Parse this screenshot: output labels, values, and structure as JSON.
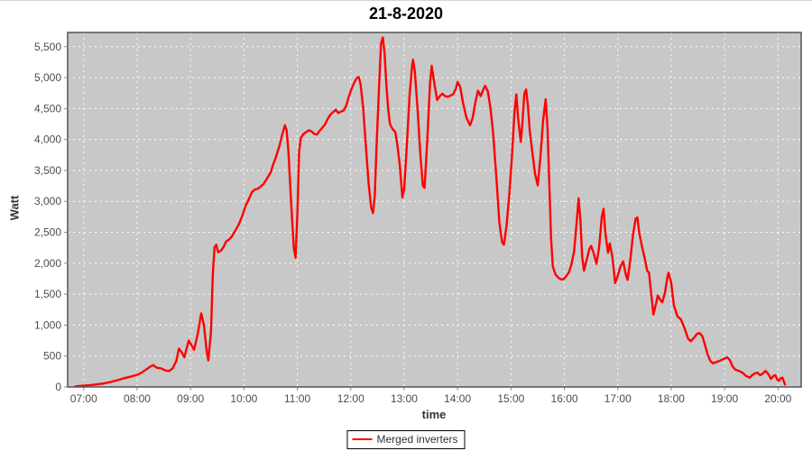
{
  "title": "21-8-2020",
  "colors": {
    "series": "#ff0000",
    "plot_background": "#c8c8c8",
    "gridline": "#ffffff",
    "plot_border": "#545454",
    "tick_color": "#8a8a8a",
    "tick_label": "#4d4d4d",
    "axis_title": "#333333",
    "title": "#000000",
    "legend_border": "#000000",
    "page_background": "#ffffff"
  },
  "chart_data": {
    "type": "line",
    "title": "21-8-2020",
    "xlabel": "time",
    "ylabel": "Watt",
    "grid": "white dashed gridlines on gray plot background",
    "x_ticks": [
      "07:00",
      "08:00",
      "09:00",
      "10:00",
      "11:00",
      "12:00",
      "13:00",
      "14:00",
      "15:00",
      "16:00",
      "17:00",
      "18:00",
      "19:00",
      "20:00"
    ],
    "y_ticks": [
      0,
      500,
      1000,
      1500,
      2000,
      2500,
      3000,
      3500,
      4000,
      4500,
      5000,
      5500
    ],
    "y_tick_labels": [
      "0",
      "500",
      "1,000",
      "1,500",
      "2,000",
      "2,500",
      "3,000",
      "3,500",
      "4,000",
      "4,500",
      "5,000",
      "5,500"
    ],
    "ylim": [
      0,
      5730
    ],
    "xlim_minutes": [
      402,
      1226
    ],
    "legend": {
      "position": "bottom-center",
      "entries": [
        {
          "label": "Merged inverters",
          "color": "#ff0000"
        }
      ]
    },
    "series": [
      {
        "name": "Merged inverters",
        "color": "#ff0000",
        "points": [
          [
            "06:51",
            10
          ],
          [
            "07:00",
            20
          ],
          [
            "07:08",
            30
          ],
          [
            "07:15",
            42
          ],
          [
            "07:22",
            55
          ],
          [
            "07:30",
            80
          ],
          [
            "07:38",
            110
          ],
          [
            "07:45",
            140
          ],
          [
            "07:52",
            165
          ],
          [
            "08:00",
            195
          ],
          [
            "08:05",
            230
          ],
          [
            "08:10",
            280
          ],
          [
            "08:15",
            330
          ],
          [
            "08:18",
            355
          ],
          [
            "08:22",
            310
          ],
          [
            "08:27",
            300
          ],
          [
            "08:32",
            265
          ],
          [
            "08:36",
            258
          ],
          [
            "08:40",
            300
          ],
          [
            "08:44",
            420
          ],
          [
            "08:47",
            620
          ],
          [
            "08:50",
            560
          ],
          [
            "08:53",
            480
          ],
          [
            "08:56",
            640
          ],
          [
            "08:58",
            750
          ],
          [
            "09:01",
            680
          ],
          [
            "09:04",
            600
          ],
          [
            "09:08",
            850
          ],
          [
            "09:12",
            1190
          ],
          [
            "09:15",
            1000
          ],
          [
            "09:18",
            600
          ],
          [
            "09:20",
            430
          ],
          [
            "09:23",
            900
          ],
          [
            "09:25",
            1800
          ],
          [
            "09:27",
            2260
          ],
          [
            "09:29",
            2300
          ],
          [
            "09:31",
            2180
          ],
          [
            "09:34",
            2200
          ],
          [
            "09:37",
            2260
          ],
          [
            "09:40",
            2350
          ],
          [
            "09:43",
            2380
          ],
          [
            "09:46",
            2420
          ],
          [
            "09:50",
            2520
          ],
          [
            "09:54",
            2620
          ],
          [
            "09:58",
            2760
          ],
          [
            "10:02",
            2930
          ],
          [
            "10:06",
            3050
          ],
          [
            "10:09",
            3150
          ],
          [
            "10:12",
            3190
          ],
          [
            "10:15",
            3200
          ],
          [
            "10:18",
            3230
          ],
          [
            "10:22",
            3280
          ],
          [
            "10:26",
            3370
          ],
          [
            "10:30",
            3470
          ],
          [
            "10:33",
            3600
          ],
          [
            "10:36",
            3720
          ],
          [
            "10:40",
            3900
          ],
          [
            "10:43",
            4080
          ],
          [
            "10:46",
            4230
          ],
          [
            "10:48",
            4150
          ],
          [
            "10:50",
            3800
          ],
          [
            "10:53",
            3000
          ],
          [
            "10:56",
            2250
          ],
          [
            "10:58",
            2090
          ],
          [
            "11:00",
            2800
          ],
          [
            "11:02",
            3800
          ],
          [
            "11:04",
            4030
          ],
          [
            "11:07",
            4090
          ],
          [
            "11:10",
            4120
          ],
          [
            "11:13",
            4150
          ],
          [
            "11:16",
            4130
          ],
          [
            "11:19",
            4090
          ],
          [
            "11:22",
            4080
          ],
          [
            "11:25",
            4140
          ],
          [
            "11:28",
            4190
          ],
          [
            "11:31",
            4240
          ],
          [
            "11:34",
            4330
          ],
          [
            "11:37",
            4400
          ],
          [
            "11:40",
            4440
          ],
          [
            "11:43",
            4480
          ],
          [
            "11:46",
            4430
          ],
          [
            "11:49",
            4450
          ],
          [
            "11:52",
            4470
          ],
          [
            "11:55",
            4550
          ],
          [
            "11:58",
            4700
          ],
          [
            "12:01",
            4820
          ],
          [
            "12:04",
            4920
          ],
          [
            "12:07",
            5000
          ],
          [
            "12:09",
            5010
          ],
          [
            "12:11",
            4900
          ],
          [
            "12:14",
            4500
          ],
          [
            "12:17",
            3900
          ],
          [
            "12:20",
            3300
          ],
          [
            "12:23",
            2900
          ],
          [
            "12:25",
            2810
          ],
          [
            "12:27",
            3100
          ],
          [
            "12:29",
            3900
          ],
          [
            "12:32",
            4900
          ],
          [
            "12:34",
            5550
          ],
          [
            "12:36",
            5650
          ],
          [
            "12:38",
            5400
          ],
          [
            "12:40",
            4900
          ],
          [
            "12:42",
            4500
          ],
          [
            "12:44",
            4250
          ],
          [
            "12:47",
            4170
          ],
          [
            "12:50",
            4120
          ],
          [
            "12:52",
            3950
          ],
          [
            "12:55",
            3600
          ],
          [
            "12:58",
            3060
          ],
          [
            "13:00",
            3200
          ],
          [
            "13:03",
            3900
          ],
          [
            "13:06",
            4700
          ],
          [
            "13:09",
            5200
          ],
          [
            "13:10",
            5290
          ],
          [
            "13:12",
            5100
          ],
          [
            "13:15",
            4500
          ],
          [
            "13:18",
            3800
          ],
          [
            "13:21",
            3250
          ],
          [
            "13:23",
            3220
          ],
          [
            "13:26",
            4000
          ],
          [
            "13:29",
            4900
          ],
          [
            "13:31",
            5190
          ],
          [
            "13:34",
            4900
          ],
          [
            "13:37",
            4640
          ],
          [
            "13:40",
            4700
          ],
          [
            "13:43",
            4740
          ],
          [
            "13:46",
            4700
          ],
          [
            "13:49",
            4690
          ],
          [
            "13:52",
            4710
          ],
          [
            "13:55",
            4730
          ],
          [
            "13:58",
            4820
          ],
          [
            "14:00",
            4930
          ],
          [
            "14:03",
            4850
          ],
          [
            "14:06",
            4600
          ],
          [
            "14:10",
            4350
          ],
          [
            "14:14",
            4230
          ],
          [
            "14:17",
            4350
          ],
          [
            "14:20",
            4600
          ],
          [
            "14:23",
            4790
          ],
          [
            "14:26",
            4700
          ],
          [
            "14:29",
            4810
          ],
          [
            "14:31",
            4870
          ],
          [
            "14:34",
            4780
          ],
          [
            "14:37",
            4500
          ],
          [
            "14:40",
            4100
          ],
          [
            "14:44",
            3300
          ],
          [
            "14:47",
            2650
          ],
          [
            "14:50",
            2340
          ],
          [
            "14:52",
            2300
          ],
          [
            "14:55",
            2600
          ],
          [
            "14:58",
            3100
          ],
          [
            "15:01",
            3700
          ],
          [
            "15:04",
            4450
          ],
          [
            "15:06",
            4730
          ],
          [
            "15:08",
            4350
          ],
          [
            "15:11",
            3960
          ],
          [
            "15:13",
            4300
          ],
          [
            "15:15",
            4740
          ],
          [
            "15:17",
            4810
          ],
          [
            "15:19",
            4550
          ],
          [
            "15:21",
            4150
          ],
          [
            "15:24",
            3800
          ],
          [
            "15:27",
            3450
          ],
          [
            "15:30",
            3260
          ],
          [
            "15:33",
            3700
          ],
          [
            "15:36",
            4300
          ],
          [
            "15:39",
            4650
          ],
          [
            "15:41",
            4200
          ],
          [
            "15:43",
            3300
          ],
          [
            "15:45",
            2400
          ],
          [
            "15:47",
            1950
          ],
          [
            "15:50",
            1820
          ],
          [
            "15:53",
            1770
          ],
          [
            "15:56",
            1740
          ],
          [
            "15:59",
            1740
          ],
          [
            "16:02",
            1790
          ],
          [
            "16:05",
            1850
          ],
          [
            "16:08",
            1980
          ],
          [
            "16:11",
            2200
          ],
          [
            "16:14",
            2700
          ],
          [
            "16:16",
            3050
          ],
          [
            "16:18",
            2700
          ],
          [
            "16:20",
            2100
          ],
          [
            "16:22",
            1880
          ],
          [
            "16:25",
            2050
          ],
          [
            "16:28",
            2230
          ],
          [
            "16:30",
            2280
          ],
          [
            "16:33",
            2160
          ],
          [
            "16:36",
            1990
          ],
          [
            "16:39",
            2250
          ],
          [
            "16:42",
            2750
          ],
          [
            "16:44",
            2880
          ],
          [
            "16:46",
            2500
          ],
          [
            "16:49",
            2170
          ],
          [
            "16:51",
            2320
          ],
          [
            "16:54",
            2100
          ],
          [
            "16:57",
            1680
          ],
          [
            "17:00",
            1800
          ],
          [
            "17:03",
            1950
          ],
          [
            "17:06",
            2030
          ],
          [
            "17:09",
            1820
          ],
          [
            "17:11",
            1730
          ],
          [
            "17:14",
            2050
          ],
          [
            "17:17",
            2450
          ],
          [
            "17:20",
            2720
          ],
          [
            "17:22",
            2740
          ],
          [
            "17:24",
            2500
          ],
          [
            "17:27",
            2280
          ],
          [
            "17:30",
            2100
          ],
          [
            "17:33",
            1880
          ],
          [
            "17:35",
            1850
          ],
          [
            "17:38",
            1450
          ],
          [
            "17:40",
            1170
          ],
          [
            "17:43",
            1350
          ],
          [
            "17:45",
            1480
          ],
          [
            "17:48",
            1400
          ],
          [
            "17:50",
            1370
          ],
          [
            "17:53",
            1520
          ],
          [
            "17:56",
            1800
          ],
          [
            "17:57",
            1845
          ],
          [
            "18:00",
            1690
          ],
          [
            "18:03",
            1320
          ],
          [
            "18:07",
            1140
          ],
          [
            "18:11",
            1090
          ],
          [
            "18:15",
            950
          ],
          [
            "18:19",
            780
          ],
          [
            "18:22",
            740
          ],
          [
            "18:26",
            800
          ],
          [
            "18:29",
            860
          ],
          [
            "18:32",
            870
          ],
          [
            "18:35",
            820
          ],
          [
            "18:38",
            680
          ],
          [
            "18:41",
            520
          ],
          [
            "18:44",
            420
          ],
          [
            "18:47",
            380
          ],
          [
            "18:50",
            400
          ],
          [
            "18:54",
            420
          ],
          [
            "18:57",
            440
          ],
          [
            "19:00",
            460
          ],
          [
            "19:03",
            480
          ],
          [
            "19:06",
            430
          ],
          [
            "19:09",
            330
          ],
          [
            "19:12",
            280
          ],
          [
            "19:16",
            260
          ],
          [
            "19:20",
            230
          ],
          [
            "19:24",
            180
          ],
          [
            "19:28",
            150
          ],
          [
            "19:31",
            190
          ],
          [
            "19:34",
            220
          ],
          [
            "19:37",
            230
          ],
          [
            "19:40",
            190
          ],
          [
            "19:43",
            220
          ],
          [
            "19:46",
            260
          ],
          [
            "19:49",
            210
          ],
          [
            "19:52",
            130
          ],
          [
            "19:55",
            180
          ],
          [
            "19:57",
            190
          ],
          [
            "19:59",
            120
          ],
          [
            "20:01",
            100
          ],
          [
            "20:03",
            140
          ],
          [
            "20:05",
            150
          ],
          [
            "20:07",
            70
          ],
          [
            "20:08",
            40
          ]
        ]
      }
    ]
  }
}
